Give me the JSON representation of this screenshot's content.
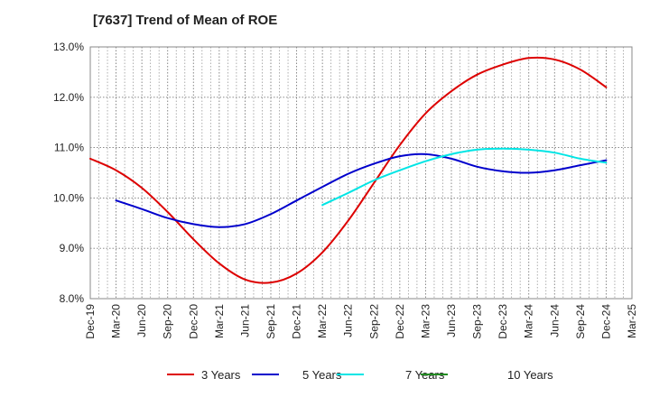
{
  "chart_data": {
    "type": "line",
    "title": "[7637]  Trend of Mean of ROE",
    "xlabel": "",
    "ylabel": "",
    "x_tick_labels": [
      "Dec-19",
      "Mar-20",
      "Jun-20",
      "Sep-20",
      "Dec-20",
      "Mar-21",
      "Jun-21",
      "Sep-21",
      "Dec-21",
      "Mar-22",
      "Jun-22",
      "Sep-22",
      "Dec-22",
      "Mar-23",
      "Jun-23",
      "Sep-23",
      "Dec-23",
      "Mar-24",
      "Jun-24",
      "Sep-24",
      "Dec-24",
      "Mar-25"
    ],
    "y_tick_labels": [
      "13.0%",
      "12.0%",
      "11.0%",
      "10.0%",
      "9.0%",
      "8.0%"
    ],
    "y_ticks": [
      13.0,
      12.0,
      11.0,
      10.0,
      9.0,
      8.0
    ],
    "ylim": [
      8.0,
      13.0
    ],
    "grid": true,
    "legend_position": "bottom",
    "series": [
      {
        "name": "3 Years",
        "color": "#dd0000",
        "start_index": 0,
        "values": [
          10.78,
          10.55,
          10.2,
          9.72,
          9.18,
          8.7,
          8.38,
          8.32,
          8.5,
          8.92,
          9.55,
          10.3,
          11.05,
          11.68,
          12.12,
          12.45,
          12.65,
          12.78,
          12.75,
          12.55,
          12.2
        ]
      },
      {
        "name": "5 Years",
        "color": "#0000cc",
        "start_index": 1,
        "values": [
          9.95,
          9.78,
          9.6,
          9.48,
          9.42,
          9.48,
          9.68,
          9.95,
          10.22,
          10.48,
          10.68,
          10.83,
          10.87,
          10.78,
          10.62,
          10.53,
          10.5,
          10.55,
          10.65,
          10.75
        ]
      },
      {
        "name": "7 Years",
        "color": "#00e5e5",
        "start_index": 9,
        "values": [
          9.86,
          10.1,
          10.35,
          10.55,
          10.73,
          10.87,
          10.96,
          10.98,
          10.96,
          10.9,
          10.78,
          10.7
        ]
      },
      {
        "name": "10 Years",
        "color": "#228b22",
        "start_index": 0,
        "values": []
      }
    ]
  }
}
